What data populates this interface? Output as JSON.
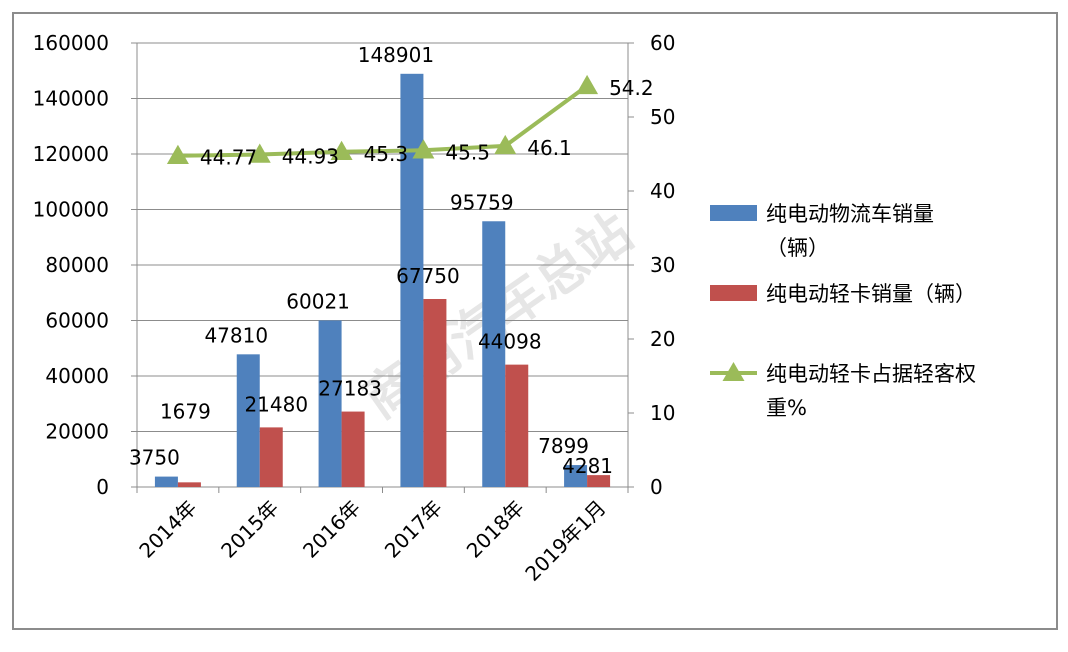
{
  "chart_data": {
    "type": "bar",
    "categories": [
      "2014年",
      "2015年",
      "2016年",
      "2017年",
      "2018年",
      "2019年1月"
    ],
    "series": [
      {
        "name": "纯电动物流车销量（辆）",
        "type": "bar",
        "axis": "left",
        "color": "#4f81bd",
        "values": [
          3750,
          47810,
          60021,
          148901,
          95759,
          7899
        ],
        "labels": [
          "3750",
          "47810",
          "60021",
          "148901",
          "95759",
          "7899"
        ]
      },
      {
        "name": "纯电动轻卡销量（辆）",
        "type": "bar",
        "axis": "left",
        "color": "#c0504d",
        "values": [
          1679,
          21480,
          27183,
          67750,
          44098,
          4281
        ],
        "labels": [
          "1679",
          "21480",
          "27183",
          "67750",
          "44098",
          "4281"
        ]
      },
      {
        "name": "纯电动轻卡占据轻客权重%",
        "type": "line",
        "axis": "right",
        "color": "#9bbb59",
        "values": [
          44.77,
          44.93,
          45.3,
          45.5,
          46.1,
          54.2
        ],
        "labels": [
          "44.77",
          "44.93",
          "45.3",
          "45.5",
          "46.1",
          "54.2"
        ]
      }
    ],
    "left_axis": {
      "ylim": [
        0,
        160000
      ],
      "ticks": [
        "0",
        "20000",
        "40000",
        "60000",
        "80000",
        "100000",
        "120000",
        "140000",
        "160000"
      ]
    },
    "right_axis": {
      "ylim": [
        0,
        60
      ],
      "ticks": [
        "0",
        "10",
        "20",
        "30",
        "40",
        "50",
        "60"
      ]
    },
    "legend": {
      "position": "right",
      "entries": [
        {
          "line1": "纯电动物流车销量",
          "line2": "（辆）"
        },
        {
          "line1": "纯电动轻卡销量（辆）",
          "line2": ""
        },
        {
          "line1": "纯电动轻卡占据轻客权",
          "line2": "重%"
        }
      ]
    },
    "grid": true,
    "title": "",
    "xlabel": "",
    "ylabel": ""
  },
  "watermark": "商用汽车总站"
}
